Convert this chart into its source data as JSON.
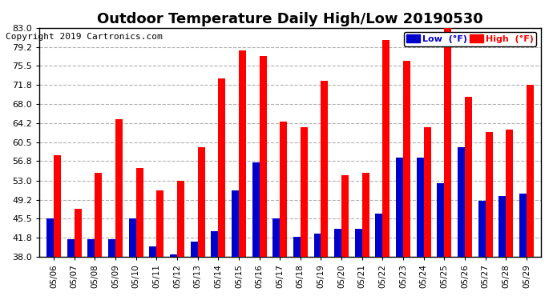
{
  "title": "Outdoor Temperature Daily High/Low 20190530",
  "copyright": "Copyright 2019 Cartronics.com",
  "legend_low": "Low  (°F)",
  "legend_high": "High  (°F)",
  "dates": [
    "05/06",
    "05/07",
    "05/08",
    "05/09",
    "05/10",
    "05/11",
    "05/12",
    "05/13",
    "05/14",
    "05/15",
    "05/16",
    "05/17",
    "05/18",
    "05/19",
    "05/20",
    "05/21",
    "05/22",
    "05/23",
    "05/24",
    "05/25",
    "05/26",
    "05/27",
    "05/28",
    "05/29"
  ],
  "highs": [
    58.0,
    47.5,
    54.5,
    65.0,
    55.5,
    51.0,
    53.0,
    59.5,
    73.0,
    78.5,
    77.5,
    64.5,
    63.5,
    72.5,
    54.0,
    54.5,
    80.5,
    76.5,
    63.5,
    83.5,
    69.5,
    62.5,
    63.0,
    71.8
  ],
  "lows": [
    45.5,
    41.5,
    41.5,
    41.5,
    45.5,
    40.0,
    38.5,
    41.0,
    43.0,
    51.0,
    56.5,
    45.5,
    42.0,
    42.5,
    43.5,
    43.5,
    46.5,
    57.5,
    57.5,
    52.5,
    59.5,
    49.0,
    50.0,
    50.5
  ],
  "yticks": [
    38.0,
    41.8,
    45.5,
    49.2,
    53.0,
    56.8,
    60.5,
    64.2,
    68.0,
    71.8,
    75.5,
    79.2,
    83.0
  ],
  "ymin": 38.0,
  "ymax": 83.0,
  "bar_color_high": "#ff0000",
  "bar_color_low": "#0000cc",
  "bg_color": "#ffffff",
  "grid_color": "#b0b0b0",
  "title_fontsize": 13,
  "copyright_fontsize": 8
}
